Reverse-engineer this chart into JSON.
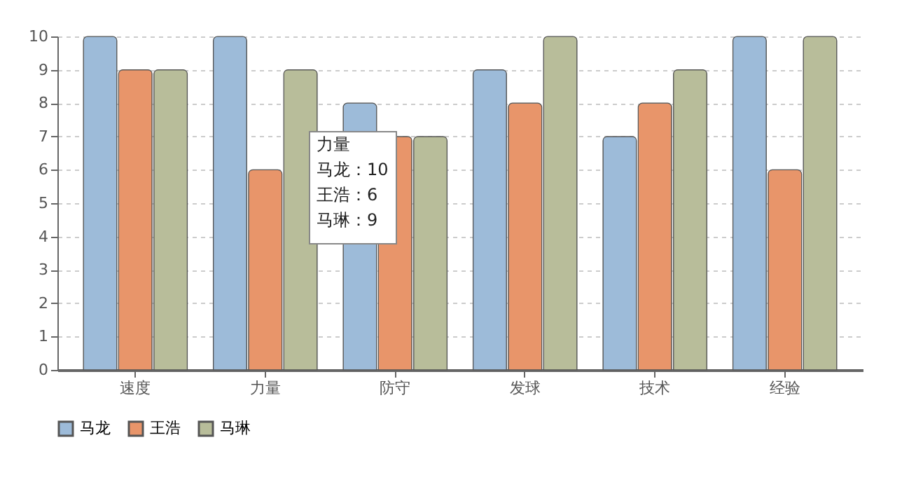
{
  "chart_data": {
    "type": "bar",
    "categories": [
      "速度",
      "力量",
      "防守",
      "发球",
      "技术",
      "经验"
    ],
    "series": [
      {
        "name": "马龙",
        "color": "#9dbbd9",
        "values": [
          10,
          10,
          8,
          9,
          7,
          10
        ]
      },
      {
        "name": "王浩",
        "color": "#e8956a",
        "values": [
          9,
          6,
          7,
          8,
          8,
          6
        ]
      },
      {
        "name": "马琳",
        "color": "#b8bd9a",
        "values": [
          9,
          9,
          7,
          10,
          9,
          10
        ]
      }
    ],
    "ylim": [
      0,
      10
    ],
    "yticks": [
      0,
      1,
      2,
      3,
      4,
      5,
      6,
      7,
      8,
      9,
      10
    ],
    "grid": "y",
    "legend": "bottom",
    "annotations": [
      "力量",
      "马龙：10",
      "王浩：6",
      "马琳：9"
    ]
  }
}
